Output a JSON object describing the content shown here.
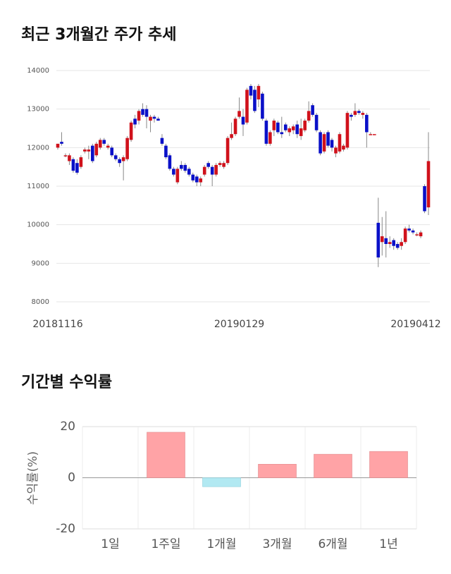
{
  "chart_data": [
    {
      "type": "candlestick",
      "title": "최근 3개월간 주가 추세",
      "x": [
        "20181116",
        null,
        null,
        null,
        null,
        null,
        null,
        null,
        null,
        null,
        null,
        null,
        null,
        null,
        null,
        null,
        null,
        null,
        null,
        null,
        null,
        null,
        null,
        null,
        null,
        null,
        null,
        null,
        null,
        null,
        null,
        null,
        null,
        null,
        null,
        null,
        null,
        null,
        null,
        null,
        null,
        null,
        null,
        null,
        null,
        null,
        null,
        "20190129",
        null,
        null,
        null,
        null,
        null,
        null,
        null,
        null,
        null,
        null,
        null,
        null,
        null,
        null,
        null,
        null,
        null,
        null,
        null,
        null,
        null,
        null,
        null,
        null,
        null,
        null,
        null,
        null,
        null,
        null,
        null,
        null,
        null,
        null,
        null,
        null,
        null,
        null,
        null,
        null,
        null,
        null,
        null,
        null,
        null,
        null,
        null,
        null,
        "20190412"
      ],
      "open": [
        12000,
        12150,
        11800,
        11650,
        11700,
        11600,
        11500,
        11900,
        11900,
        12050,
        11800,
        12000,
        12200,
        12000,
        12000,
        11800,
        11700,
        11650,
        11700,
        12200,
        12750,
        12700,
        13000,
        13000,
        12700,
        12800,
        12750,
        12250,
        12050,
        11800,
        11450,
        11100,
        11550,
        11550,
        11450,
        11300,
        11250,
        11100,
        11300,
        11600,
        11500,
        11300,
        11550,
        11500,
        11600,
        12250,
        12350,
        12800,
        12800,
        12650,
        13600,
        13500,
        13250,
        13400,
        12700,
        12100,
        12450,
        12650,
        12400,
        12600,
        12400,
        12450,
        12600,
        12300,
        12450,
        12700,
        13100,
        12850,
        12400,
        11900,
        12400,
        12200,
        11850,
        11900,
        11950,
        12000,
        12850,
        12850,
        12950,
        12850,
        12850,
        12350,
        12350,
        10050,
        9550,
        9650,
        9500,
        9600,
        9500,
        9450,
        9550,
        9900,
        9850,
        9750,
        9700,
        11000,
        10450
      ],
      "high": [
        12100,
        12400,
        11850,
        11850,
        11750,
        11700,
        11800,
        12000,
        12050,
        12100,
        12150,
        12250,
        12250,
        12100,
        12050,
        11850,
        11750,
        11800,
        12300,
        12700,
        12850,
        13000,
        13150,
        13100,
        12850,
        12850,
        12800,
        12350,
        12100,
        11850,
        11500,
        11500,
        11650,
        11600,
        11500,
        11350,
        11300,
        11250,
        11550,
        11650,
        11550,
        11600,
        11650,
        11650,
        12300,
        12650,
        12800,
        13300,
        13000,
        13550,
        13650,
        13600,
        13650,
        13450,
        12750,
        12450,
        12750,
        12700,
        12800,
        12650,
        12550,
        12600,
        12700,
        12750,
        12750,
        13200,
        13150,
        12900,
        12450,
        12400,
        12450,
        12250,
        12050,
        12400,
        12100,
        12950,
        12900,
        13150,
        13000,
        12950,
        12900,
        12400,
        12350,
        10700,
        10200,
        10350,
        9700,
        9650,
        9550,
        9650,
        9950,
        10000,
        9900,
        9800,
        9850,
        11050,
        12400
      ],
      "low": [
        11950,
        12050,
        11750,
        11550,
        11350,
        11300,
        11450,
        11850,
        11700,
        11600,
        11750,
        11950,
        12050,
        11950,
        11750,
        11650,
        11500,
        11150,
        11650,
        12150,
        12500,
        12600,
        12800,
        12500,
        12400,
        12650,
        12700,
        12050,
        11700,
        11400,
        11250,
        11050,
        11400,
        11350,
        11250,
        11100,
        11000,
        11000,
        11250,
        11450,
        11000,
        11250,
        11500,
        11450,
        11550,
        12200,
        12300,
        12750,
        12300,
        12600,
        13250,
        12900,
        13050,
        12700,
        12050,
        12050,
        12300,
        12350,
        12250,
        12400,
        12300,
        12350,
        12250,
        12200,
        12400,
        12650,
        12800,
        12400,
        11800,
        11850,
        12000,
        11900,
        11750,
        11850,
        11900,
        11950,
        12700,
        12800,
        12850,
        12750,
        12000,
        12350,
        12350,
        8900,
        9200,
        9150,
        9400,
        9350,
        9350,
        9350,
        9500,
        9800,
        9750,
        9700,
        9650,
        10300,
        10250
      ],
      "close": [
        12100,
        12100,
        11800,
        11800,
        11400,
        11350,
        11750,
        11950,
        11950,
        11650,
        12100,
        12200,
        12100,
        12050,
        11800,
        11700,
        11600,
        11750,
        12250,
        12650,
        12600,
        12950,
        12850,
        12800,
        12800,
        12750,
        12700,
        12100,
        11750,
        11450,
        11300,
        11450,
        11450,
        11400,
        11300,
        11150,
        11100,
        11200,
        11500,
        11500,
        11300,
        11550,
        11600,
        11600,
        12250,
        12350,
        12750,
        12950,
        12600,
        13500,
        13350,
        12950,
        13600,
        12750,
        12100,
        12400,
        12700,
        12400,
        12350,
        12450,
        12500,
        12550,
        12350,
        12500,
        12700,
        12950,
        12850,
        12450,
        11850,
        12350,
        12050,
        12000,
        12000,
        12350,
        12050,
        12900,
        12800,
        12950,
        12900,
        12900,
        12400,
        12350,
        12350,
        9150,
        9700,
        9500,
        9550,
        9450,
        9400,
        9550,
        9900,
        9850,
        9800,
        9750,
        9800,
        10350,
        11650
      ],
      "up_color": "#d0111b",
      "down_color": "#0a10c8",
      "ylim": [
        8000,
        14000
      ],
      "yticks": [
        8000,
        9000,
        10000,
        11000,
        12000,
        13000,
        14000
      ],
      "grid": true
    },
    {
      "type": "bar",
      "title": "기간별 수익률",
      "y_label": "수익률(%)",
      "categories": [
        "1일",
        "1주일",
        "1개월",
        "3개월",
        "6개월",
        "1년"
      ],
      "values": [
        0,
        17.8,
        -3.5,
        5.3,
        9.2,
        10.3
      ],
      "positive_color": "#ffa3a6",
      "negative_color": "#b2e9f2",
      "ylim": [
        -20,
        20
      ],
      "yticks": [
        -20,
        0,
        20
      ],
      "grid": true
    }
  ]
}
